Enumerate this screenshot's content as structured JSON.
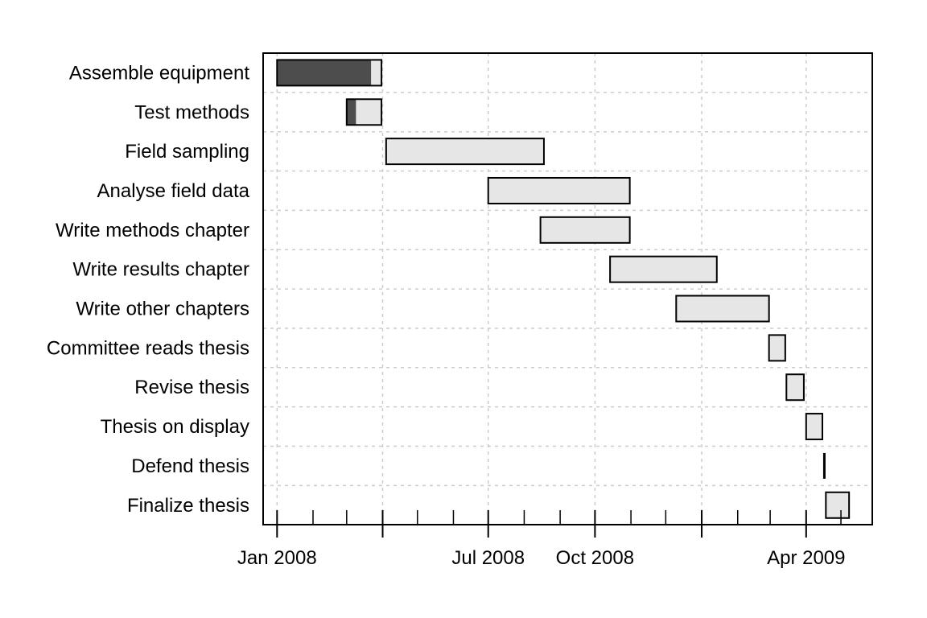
{
  "chart_data": {
    "type": "gantt",
    "title": "",
    "xlabel": "",
    "ylabel": "",
    "x_range": [
      "2007-12-20",
      "2009-05-28"
    ],
    "grid": true,
    "legend": "none",
    "colors": {
      "done": "#4d4d4d",
      "remaining": "#e6e6e6",
      "border": "#000000",
      "grid": "#cccccc"
    },
    "tasks": [
      {
        "label": "Assemble equipment",
        "start": "2008-01-01",
        "end": "2008-03-31",
        "done": "2008-03-22"
      },
      {
        "label": "Test methods",
        "start": "2008-03-01",
        "end": "2008-03-31",
        "done": "2008-03-09"
      },
      {
        "label": "Field sampling",
        "start": "2008-04-04",
        "end": "2008-08-18",
        "done": null
      },
      {
        "label": "Analyse field data",
        "start": "2008-07-01",
        "end": "2008-10-31",
        "done": null
      },
      {
        "label": "Write methods chapter",
        "start": "2008-08-15",
        "end": "2008-10-31",
        "done": null
      },
      {
        "label": "Write results chapter",
        "start": "2008-10-14",
        "end": "2009-01-14",
        "done": null
      },
      {
        "label": "Write other chapters",
        "start": "2008-12-10",
        "end": "2009-02-28",
        "done": null
      },
      {
        "label": "Committee reads thesis",
        "start": "2009-02-28",
        "end": "2009-03-14",
        "done": null
      },
      {
        "label": "Revise thesis",
        "start": "2009-03-15",
        "end": "2009-03-30",
        "done": null
      },
      {
        "label": "Thesis on display",
        "start": "2009-04-01",
        "end": "2009-04-15",
        "done": null
      },
      {
        "label": "Defend thesis",
        "start": "2009-04-16",
        "end": "2009-04-17",
        "done": null
      },
      {
        "label": "Finalize thesis",
        "start": "2009-04-18",
        "end": "2009-05-08",
        "done": null
      }
    ],
    "x_tick_labels": [
      {
        "date": "2008-01-01",
        "label": "Jan 2008"
      },
      {
        "date": "2008-07-01",
        "label": "Jul 2008"
      },
      {
        "date": "2008-10-01",
        "label": "Oct 2008"
      },
      {
        "date": "2009-04-01",
        "label": "Apr 2009"
      }
    ],
    "major_ticks": [
      "2008-01-01",
      "2008-04-01",
      "2008-07-01",
      "2008-10-01",
      "2009-01-01",
      "2009-04-01"
    ],
    "minor_ticks": [
      "2008-02-01",
      "2008-03-01",
      "2008-05-01",
      "2008-06-01",
      "2008-08-01",
      "2008-09-01",
      "2008-11-01",
      "2008-12-01",
      "2009-02-01",
      "2009-03-01",
      "2009-05-01"
    ]
  }
}
